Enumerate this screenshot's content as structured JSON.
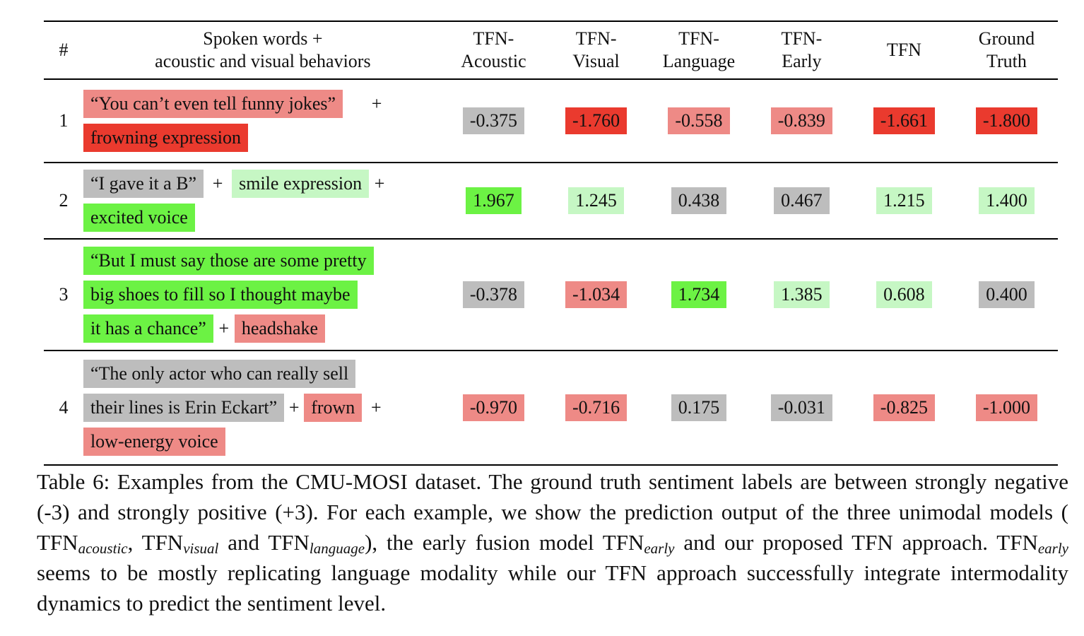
{
  "table": {
    "headers": {
      "num": "#",
      "words_line1": "Spoken words +",
      "words_line2": "acoustic and visual behaviors",
      "acoustic_line1": "TFN-",
      "acoustic_line2": "Acoustic",
      "visual_line1": "TFN-",
      "visual_line2": "Visual",
      "language_line1": "TFN-",
      "language_line2": "Language",
      "early_line1": "TFN-",
      "early_line2": "Early",
      "tfn": "TFN",
      "gt_line1": "Ground",
      "gt_line2": "Truth"
    },
    "rows": [
      {
        "num": "1",
        "lines": [
          [
            {
              "text": "“You can’t even tell funny jokes”",
              "level": "neg"
            },
            {
              "text": "+",
              "plus": true,
              "width": 96
            }
          ],
          [
            {
              "text": "frowning expression",
              "level": "strong-neg"
            }
          ]
        ],
        "values": [
          {
            "text": "-0.375",
            "level": "neutral"
          },
          {
            "text": "-1.760",
            "level": "strong-neg"
          },
          {
            "text": "-0.558",
            "level": "neg"
          },
          {
            "text": "-0.839",
            "level": "neg"
          },
          {
            "text": "-1.661",
            "level": "strong-neg"
          },
          {
            "text": "-1.800",
            "level": "strong-neg"
          }
        ]
      },
      {
        "num": "2",
        "lines": [
          [
            {
              "text": "“I gave it a B”",
              "level": "neutral"
            },
            {
              "text": "+",
              "plus": true,
              "width": 40
            },
            {
              "text": "smile expression",
              "level": "pos"
            },
            {
              "text": "+",
              "plus": true,
              "width": 30
            }
          ],
          [
            {
              "text": "excited voice",
              "level": "strong-pos"
            }
          ]
        ],
        "values": [
          {
            "text": "1.967",
            "level": "strong-pos"
          },
          {
            "text": "1.245",
            "level": "pos"
          },
          {
            "text": "0.438",
            "level": "neutral"
          },
          {
            "text": "0.467",
            "level": "neutral"
          },
          {
            "text": "1.215",
            "level": "pos"
          },
          {
            "text": "1.400",
            "level": "pos"
          }
        ]
      },
      {
        "num": "3",
        "lines": [
          [
            {
              "text": "“But I must say those are some pretty",
              "level": "strong-pos"
            }
          ],
          [
            {
              "text": "big shoes to fill so I thought maybe",
              "level": "strong-pos"
            }
          ],
          [
            {
              "text": "it has a chance”",
              "level": "strong-pos"
            },
            {
              "text": "+",
              "plus": true,
              "width": 30
            },
            {
              "text": "headshake",
              "level": "neg"
            }
          ]
        ],
        "values": [
          {
            "text": "-0.378",
            "level": "neutral"
          },
          {
            "text": "-1.034",
            "level": "neg"
          },
          {
            "text": "1.734",
            "level": "strong-pos"
          },
          {
            "text": "1.385",
            "level": "pos"
          },
          {
            "text": "0.608",
            "level": "pos"
          },
          {
            "text": "0.400",
            "level": "neutral"
          }
        ]
      },
      {
        "num": "4",
        "lines": [
          [
            {
              "text": "“The only actor who can really sell",
              "level": "neutral"
            }
          ],
          [
            {
              "text": "their lines is Erin Eckart”",
              "level": "neutral"
            },
            {
              "text": "+",
              "plus": true,
              "width": 28
            },
            {
              "text": "frown",
              "level": "neg"
            },
            {
              "text": "+",
              "plus": true,
              "width": 40
            }
          ],
          [
            {
              "text": "low-energy voice",
              "level": "neg"
            }
          ]
        ],
        "values": [
          {
            "text": "-0.970",
            "level": "neg"
          },
          {
            "text": "-0.716",
            "level": "neg"
          },
          {
            "text": "0.175",
            "level": "neutral"
          },
          {
            "text": "-0.031",
            "level": "neutral"
          },
          {
            "text": "-0.825",
            "level": "neg"
          },
          {
            "text": "-1.000",
            "level": "neg"
          }
        ]
      }
    ]
  },
  "caption": {
    "p1": "Table 6: Examples from the CMU-MOSI dataset. The ground truth sentiment labels are between strongly negative (-3) and strongly positive (+3). For each example, we show the prediction output of the three unimodal models ( TFN",
    "s_acoustic": "acoustic",
    "p2": ", TFN",
    "s_visual": "visual",
    "p3": " and TFN",
    "s_language": "language",
    "p4": "), the early fusion model TFN",
    "s_early1": "early",
    "p5": " and our proposed TFN approach. TFN",
    "s_early2": "early",
    "p6": " seems to be mostly replicating language modality while our TFN approach successfully integrate intermodality dynamics to predict the sentiment level."
  }
}
